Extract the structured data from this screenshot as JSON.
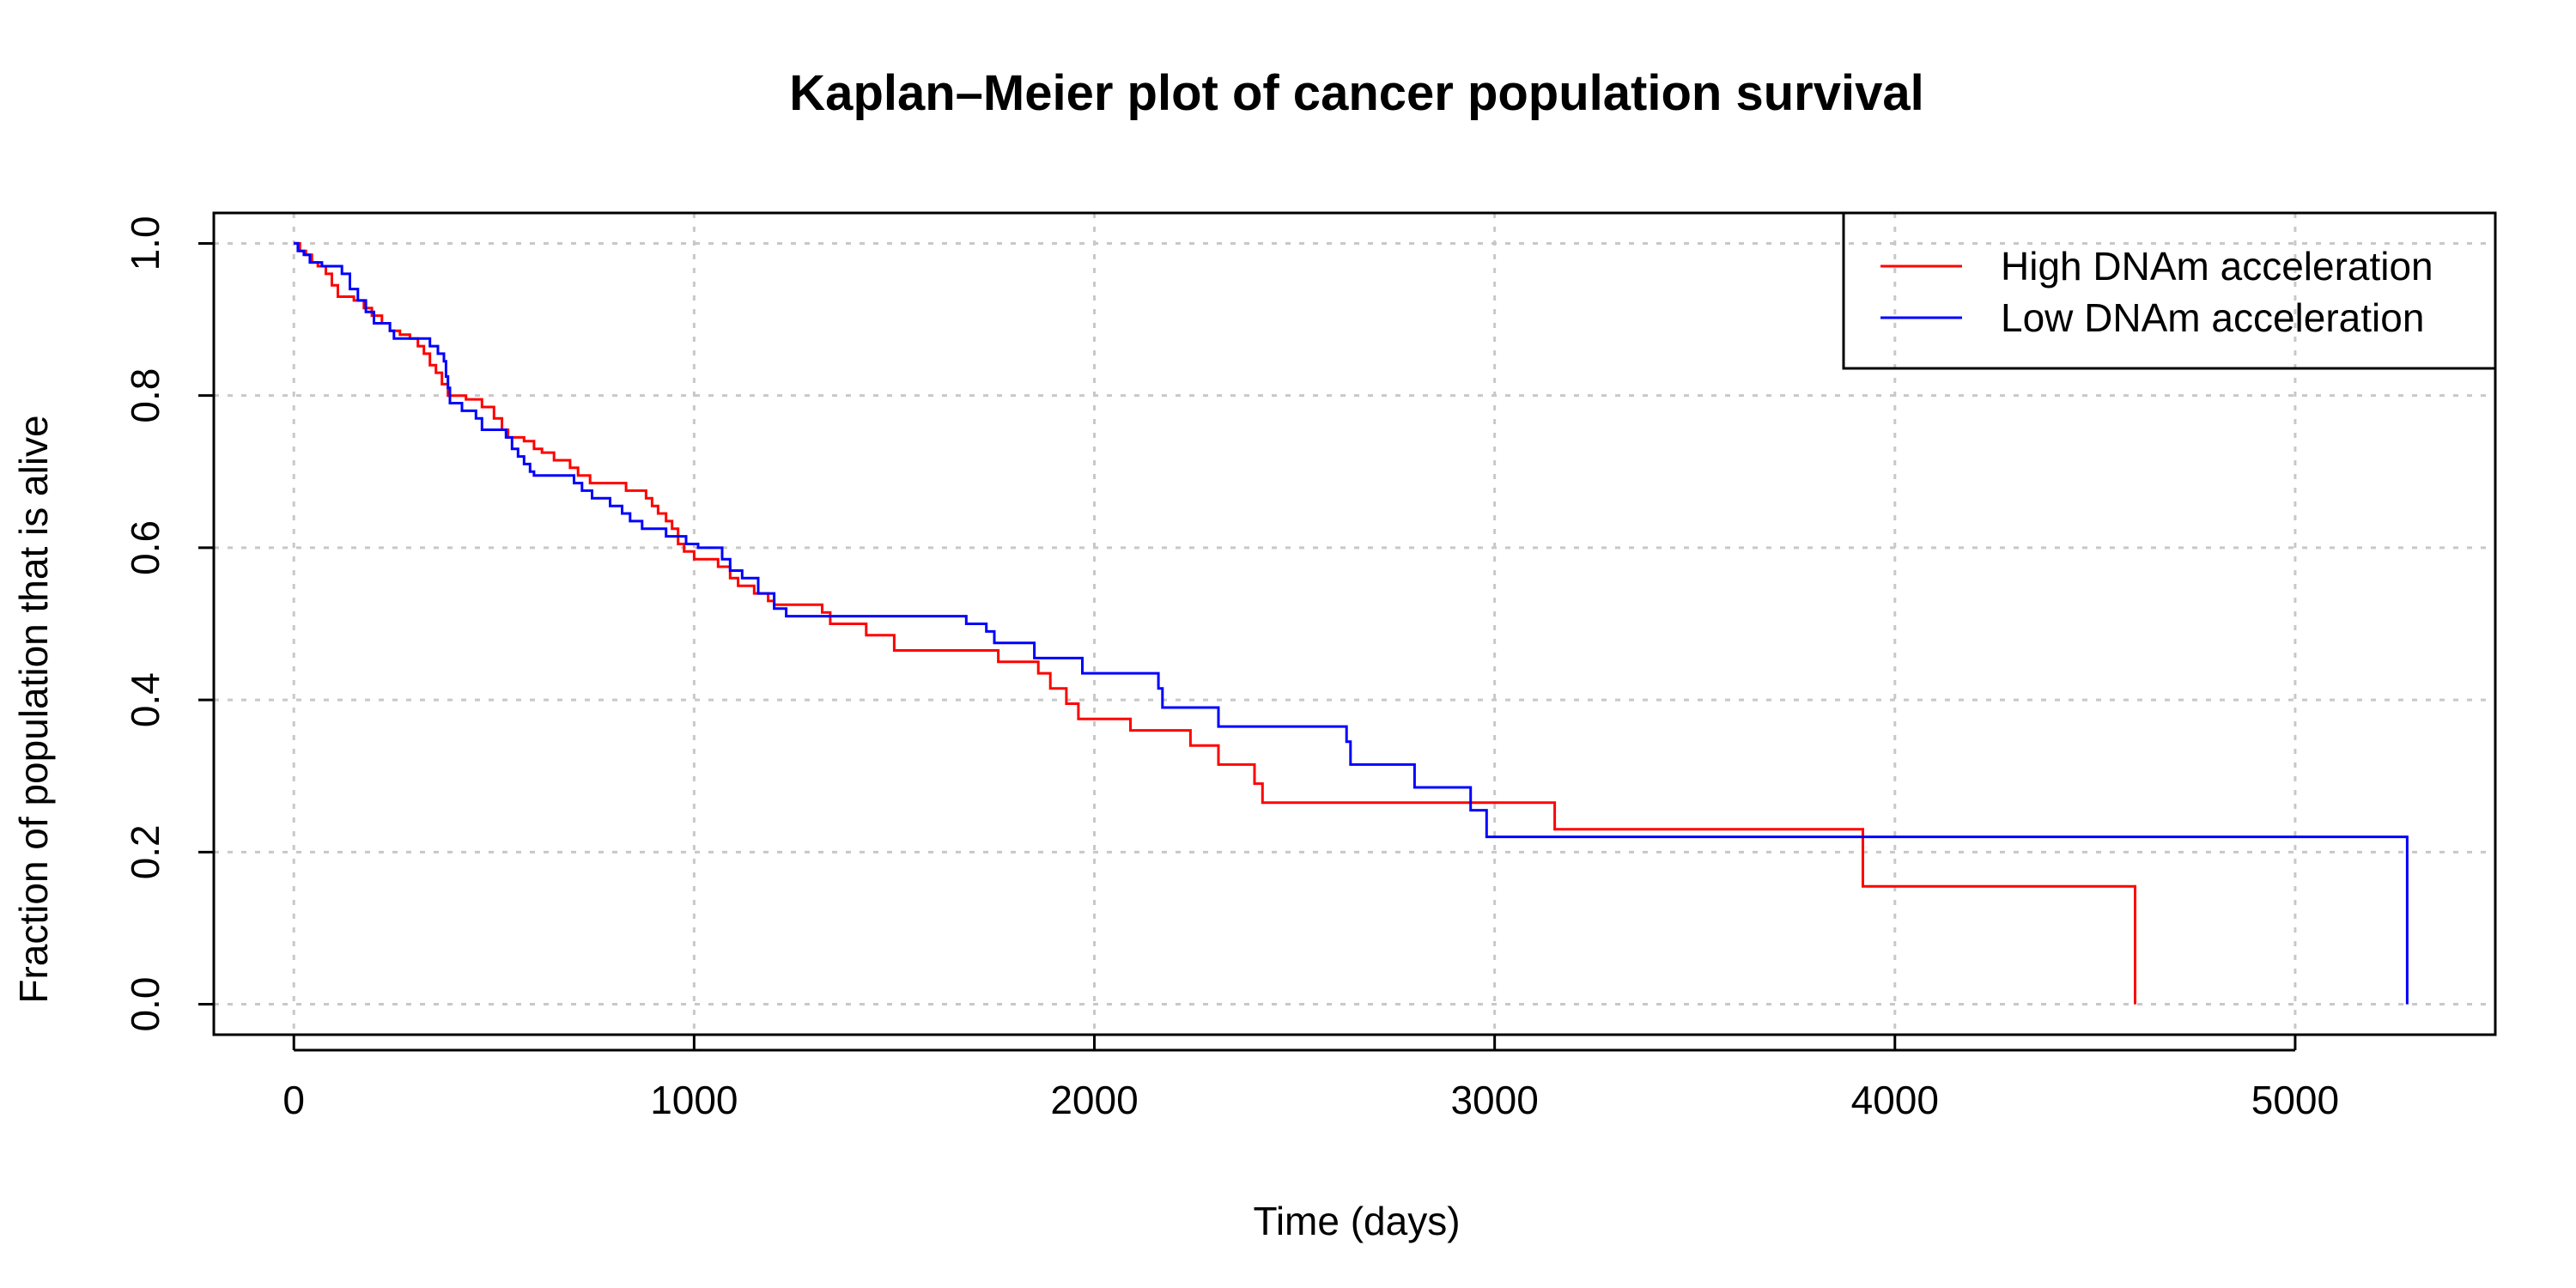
{
  "chart_data": {
    "type": "line",
    "title": "Kaplan–Meier plot of cancer population survival",
    "xlabel": "Time (days)",
    "ylabel": "Fraction of population that is alive",
    "xlim": [
      -200,
      5500
    ],
    "ylim": [
      -0.04,
      1.04
    ],
    "x_ticks": [
      0,
      1000,
      2000,
      3000,
      4000,
      5000
    ],
    "x_tick_labels": [
      "0",
      "1000",
      "2000",
      "3000",
      "4000",
      "5000"
    ],
    "y_ticks": [
      0.0,
      0.2,
      0.4,
      0.6,
      0.8,
      1.0
    ],
    "y_tick_labels": [
      "0.0",
      "0.2",
      "0.4",
      "0.6",
      "0.8",
      "1.0"
    ],
    "grid": true,
    "legend_position": "top-right",
    "step": true,
    "series": [
      {
        "name": "High DNAm acceleration",
        "color": "#ff0000",
        "points": [
          [
            0,
            1.0
          ],
          [
            15,
            0.99
          ],
          [
            30,
            0.985
          ],
          [
            45,
            0.975
          ],
          [
            60,
            0.97
          ],
          [
            80,
            0.96
          ],
          [
            95,
            0.945
          ],
          [
            110,
            0.93
          ],
          [
            150,
            0.925
          ],
          [
            175,
            0.915
          ],
          [
            195,
            0.905
          ],
          [
            220,
            0.895
          ],
          [
            240,
            0.885
          ],
          [
            265,
            0.88
          ],
          [
            290,
            0.875
          ],
          [
            310,
            0.865
          ],
          [
            325,
            0.855
          ],
          [
            340,
            0.84
          ],
          [
            355,
            0.83
          ],
          [
            370,
            0.815
          ],
          [
            385,
            0.8
          ],
          [
            430,
            0.795
          ],
          [
            470,
            0.785
          ],
          [
            500,
            0.77
          ],
          [
            520,
            0.755
          ],
          [
            535,
            0.745
          ],
          [
            575,
            0.74
          ],
          [
            600,
            0.73
          ],
          [
            620,
            0.725
          ],
          [
            650,
            0.715
          ],
          [
            690,
            0.705
          ],
          [
            710,
            0.695
          ],
          [
            740,
            0.685
          ],
          [
            830,
            0.675
          ],
          [
            880,
            0.665
          ],
          [
            895,
            0.655
          ],
          [
            910,
            0.645
          ],
          [
            930,
            0.635
          ],
          [
            945,
            0.625
          ],
          [
            960,
            0.605
          ],
          [
            975,
            0.595
          ],
          [
            1000,
            0.585
          ],
          [
            1060,
            0.575
          ],
          [
            1090,
            0.56
          ],
          [
            1110,
            0.55
          ],
          [
            1150,
            0.54
          ],
          [
            1185,
            0.53
          ],
          [
            1200,
            0.525
          ],
          [
            1320,
            0.515
          ],
          [
            1340,
            0.5
          ],
          [
            1430,
            0.485
          ],
          [
            1500,
            0.465
          ],
          [
            1760,
            0.45
          ],
          [
            1860,
            0.435
          ],
          [
            1890,
            0.415
          ],
          [
            1930,
            0.395
          ],
          [
            1960,
            0.375
          ],
          [
            2090,
            0.36
          ],
          [
            2240,
            0.34
          ],
          [
            2310,
            0.315
          ],
          [
            2400,
            0.29
          ],
          [
            2420,
            0.265
          ],
          [
            3150,
            0.23
          ],
          [
            3920,
            0.155
          ],
          [
            4600,
            0.0
          ]
        ]
      },
      {
        "name": "Low DNAm acceleration",
        "color": "#0000ff",
        "points": [
          [
            0,
            1.0
          ],
          [
            10,
            0.99
          ],
          [
            25,
            0.985
          ],
          [
            40,
            0.975
          ],
          [
            70,
            0.97
          ],
          [
            120,
            0.96
          ],
          [
            140,
            0.94
          ],
          [
            160,
            0.925
          ],
          [
            180,
            0.91
          ],
          [
            200,
            0.895
          ],
          [
            240,
            0.885
          ],
          [
            250,
            0.875
          ],
          [
            340,
            0.865
          ],
          [
            360,
            0.855
          ],
          [
            375,
            0.845
          ],
          [
            380,
            0.825
          ],
          [
            385,
            0.81
          ],
          [
            390,
            0.79
          ],
          [
            420,
            0.78
          ],
          [
            455,
            0.77
          ],
          [
            470,
            0.755
          ],
          [
            530,
            0.745
          ],
          [
            545,
            0.73
          ],
          [
            560,
            0.72
          ],
          [
            575,
            0.71
          ],
          [
            590,
            0.7
          ],
          [
            600,
            0.695
          ],
          [
            700,
            0.685
          ],
          [
            720,
            0.675
          ],
          [
            745,
            0.665
          ],
          [
            790,
            0.655
          ],
          [
            820,
            0.645
          ],
          [
            840,
            0.635
          ],
          [
            870,
            0.625
          ],
          [
            930,
            0.615
          ],
          [
            980,
            0.605
          ],
          [
            1010,
            0.6
          ],
          [
            1070,
            0.585
          ],
          [
            1090,
            0.57
          ],
          [
            1120,
            0.56
          ],
          [
            1160,
            0.54
          ],
          [
            1200,
            0.52
          ],
          [
            1230,
            0.51
          ],
          [
            1680,
            0.5
          ],
          [
            1730,
            0.49
          ],
          [
            1750,
            0.475
          ],
          [
            1850,
            0.455
          ],
          [
            1970,
            0.435
          ],
          [
            2160,
            0.415
          ],
          [
            2170,
            0.39
          ],
          [
            2310,
            0.365
          ],
          [
            2630,
            0.345
          ],
          [
            2640,
            0.315
          ],
          [
            2800,
            0.285
          ],
          [
            2940,
            0.255
          ],
          [
            2980,
            0.22
          ],
          [
            5280,
            0.0
          ]
        ]
      }
    ]
  }
}
